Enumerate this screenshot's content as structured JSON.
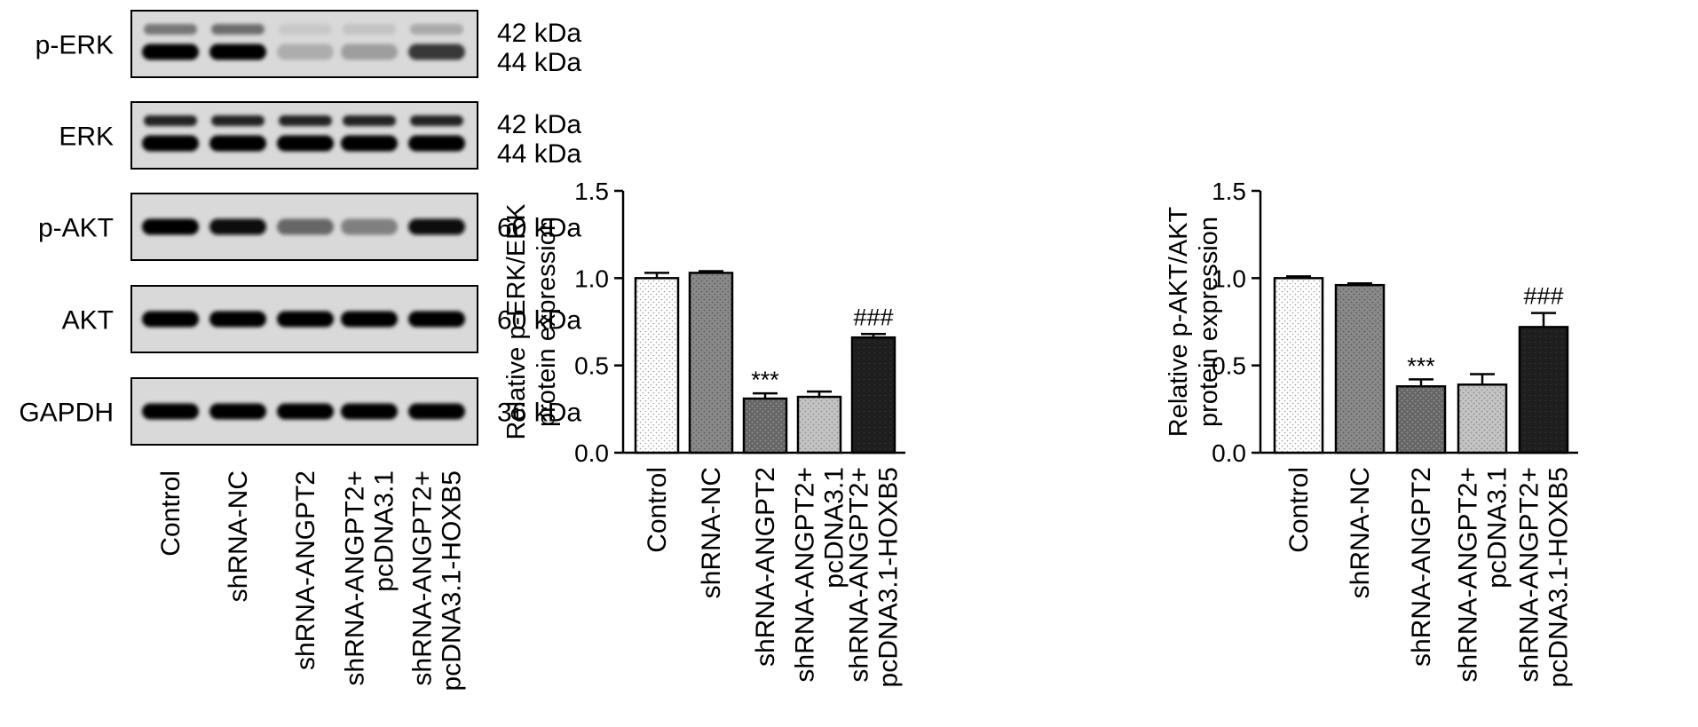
{
  "blot": {
    "rows": [
      {
        "name": "p-ERK",
        "kda": [
          "42 kDa",
          "44 kDa"
        ],
        "intensity": [
          1.0,
          1.0,
          0.32,
          0.38,
          0.78
        ],
        "upper": [
          0.45,
          0.5,
          0.08,
          0.1,
          0.22
        ],
        "double": true
      },
      {
        "name": "ERK",
        "kda": [
          "42 kDa",
          "44 kDa"
        ],
        "intensity": [
          1.0,
          1.0,
          1.0,
          1.0,
          1.0
        ],
        "upper": [
          0.85,
          0.85,
          0.85,
          0.85,
          0.85
        ],
        "double": true
      },
      {
        "name": "p-AKT",
        "kda": [
          "60 kDa"
        ],
        "intensity": [
          1.0,
          0.95,
          0.6,
          0.5,
          0.95
        ],
        "double": false
      },
      {
        "name": "AKT",
        "kda": [
          "60 kDa"
        ],
        "intensity": [
          1.0,
          1.0,
          1.0,
          1.0,
          1.0
        ],
        "double": false
      },
      {
        "name": "GAPDH",
        "kda": [
          "36 kDa"
        ],
        "intensity": [
          1.0,
          1.0,
          1.0,
          1.0,
          1.0
        ],
        "double": false
      }
    ],
    "lanes": [
      [
        "Control"
      ],
      [
        "shRNA-NC"
      ],
      [
        "shRNA-ANGPT2"
      ],
      [
        "shRNA-ANGPT2+",
        "pcDNA3.1"
      ],
      [
        "shRNA-ANGPT2+",
        "pcDNA3.1-HOXB5"
      ]
    ]
  },
  "chart_data": [
    {
      "type": "bar",
      "categories": [
        [
          "Control"
        ],
        [
          "shRNA-NC"
        ],
        [
          "shRNA-ANGPT2"
        ],
        [
          "shRNA-ANGPT2+",
          "pcDNA3.1"
        ],
        [
          "shRNA-ANGPT2+",
          "pcDNA3.1-HOXB5"
        ]
      ],
      "values": [
        1.0,
        1.03,
        0.31,
        0.32,
        0.66
      ],
      "errors": [
        0.03,
        0.01,
        0.03,
        0.03,
        0.02
      ],
      "significance": [
        "",
        "",
        "***",
        "",
        "###"
      ],
      "ylabel": [
        "Relative p-ERK/ERK",
        "protein expression"
      ],
      "ylim": [
        0,
        1.5
      ],
      "yticks": [
        "0.0",
        "0.5",
        "1.0",
        "1.5"
      ],
      "grid": false,
      "fills": [
        "#ffffff",
        "#8a8a8a",
        "#6a6a6a",
        "#c2c2c2",
        "#202020"
      ]
    },
    {
      "type": "bar",
      "categories": [
        [
          "Control"
        ],
        [
          "shRNA-NC"
        ],
        [
          "shRNA-ANGPT2"
        ],
        [
          "shRNA-ANGPT2+",
          "pcDNA3.1"
        ],
        [
          "shRNA-ANGPT2+",
          "pcDNA3.1-HOXB5"
        ]
      ],
      "values": [
        1.0,
        0.96,
        0.38,
        0.39,
        0.72
      ],
      "errors": [
        0.01,
        0.01,
        0.04,
        0.06,
        0.08
      ],
      "significance": [
        "",
        "",
        "***",
        "",
        "###"
      ],
      "ylabel": [
        "Relative p-AKT/AKT",
        "protein expression"
      ],
      "ylim": [
        0,
        1.5
      ],
      "yticks": [
        "0.0",
        "0.5",
        "1.0",
        "1.5"
      ],
      "grid": false,
      "fills": [
        "#ffffff",
        "#8a8a8a",
        "#6a6a6a",
        "#c2c2c2",
        "#202020"
      ]
    }
  ]
}
